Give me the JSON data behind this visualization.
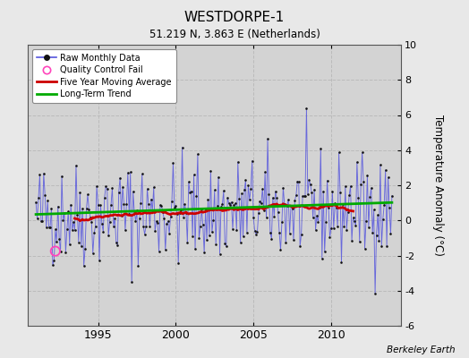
{
  "title": "WESTDORPE-1",
  "subtitle": "51.219 N, 3.863 E (Netherlands)",
  "ylabel": "Temperature Anomaly (°C)",
  "attribution": "Berkeley Earth",
  "xlim": [
    1990.5,
    2014.5
  ],
  "ylim": [
    -6,
    10
  ],
  "yticks": [
    -6,
    -4,
    -2,
    0,
    2,
    4,
    6,
    8,
    10
  ],
  "xticks": [
    1995,
    2000,
    2005,
    2010
  ],
  "bg_color": "#e8e8e8",
  "plot_bg_color": "#d3d3d3",
  "raw_color": "#5555dd",
  "raw_dot_color": "#111111",
  "ma_color": "#cc0000",
  "trend_color": "#00aa00",
  "qc_color": "#ff44bb",
  "grid_color": "#bbbbbb",
  "start_year": 1991,
  "end_year": 2013,
  "qc_fail_year": 1992.25,
  "qc_fail_value": -1.75,
  "seed": 42
}
